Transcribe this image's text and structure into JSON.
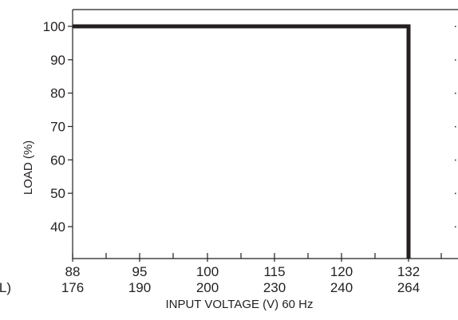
{
  "chart_data": {
    "type": "line",
    "title": "",
    "xlabel": "INPUT VOLTAGE (V) 60 Hz",
    "ylabel": "LOAD (%)",
    "x_tick_rows": [
      [
        "88",
        "95",
        "100",
        "115",
        "120",
        "132"
      ],
      [
        "176",
        "190",
        "200",
        "230",
        "240",
        "264"
      ]
    ],
    "x_row_label_fragment": "AL)",
    "y_ticks": [
      100,
      90,
      80,
      70,
      60,
      50,
      40
    ],
    "ylim": [
      30,
      106
    ],
    "grid": false,
    "series": [
      {
        "points": [
          {
            "x": "88",
            "y": 100
          },
          {
            "x": "132",
            "y": 100
          },
          {
            "x": "132",
            "y": 30
          }
        ]
      }
    ],
    "color": "#231f20"
  }
}
